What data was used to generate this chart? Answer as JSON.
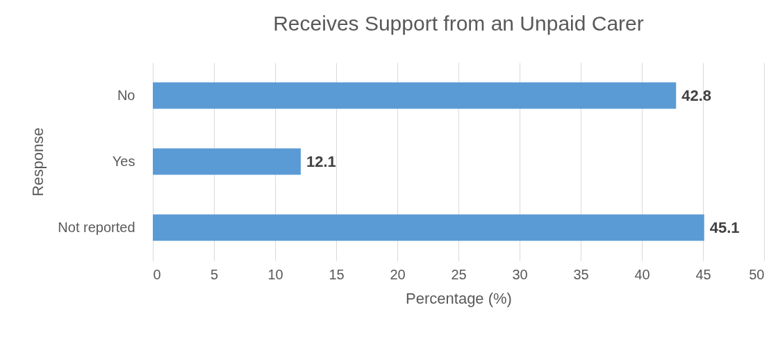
{
  "chart_data": {
    "type": "bar",
    "orientation": "horizontal",
    "title": "Receives Support from an Unpaid Carer",
    "xlabel": "Percentage (%)",
    "ylabel": "Response",
    "categories": [
      "No",
      "Yes",
      "Not reported"
    ],
    "values": [
      42.8,
      12.1,
      45.1
    ],
    "color": "#5b9bd5",
    "xlim": [
      0,
      50
    ],
    "xticks": [
      0,
      5,
      10,
      15,
      20,
      25,
      30,
      35,
      40,
      45,
      50
    ],
    "grid": "x",
    "data_labels": true
  }
}
